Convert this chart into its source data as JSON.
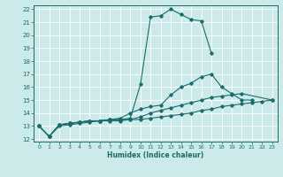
{
  "xlabel": "Humidex (Indice chaleur)",
  "bg_color": "#cceaea",
  "grid_color": "#b0d8d8",
  "line_color": "#1a6b6b",
  "xlim": [
    -0.5,
    23.5
  ],
  "ylim": [
    11.8,
    22.3
  ],
  "xticks": [
    0,
    1,
    2,
    3,
    4,
    5,
    6,
    7,
    8,
    9,
    10,
    11,
    12,
    13,
    14,
    15,
    16,
    17,
    18,
    19,
    20,
    21,
    22,
    23
  ],
  "yticks": [
    12,
    13,
    14,
    15,
    16,
    17,
    18,
    19,
    20,
    21,
    22
  ],
  "line1_x": [
    0,
    1,
    2,
    3,
    4,
    5,
    6,
    7,
    8,
    9,
    10,
    11,
    12,
    13,
    14,
    15,
    16,
    17
  ],
  "line1_y": [
    13.0,
    12.2,
    13.1,
    13.2,
    13.3,
    13.4,
    13.4,
    13.5,
    13.5,
    13.6,
    16.2,
    21.4,
    21.5,
    22.0,
    21.6,
    21.2,
    21.1,
    18.6
  ],
  "line2_x": [
    0,
    1,
    2,
    3,
    4,
    5,
    6,
    7,
    8,
    9,
    10,
    11,
    12,
    13,
    14,
    15,
    16,
    17,
    18,
    19,
    20,
    21
  ],
  "line2_y": [
    13.0,
    12.2,
    13.1,
    13.2,
    13.3,
    13.4,
    13.4,
    13.5,
    13.6,
    14.0,
    14.3,
    14.5,
    14.6,
    15.4,
    16.0,
    16.3,
    16.8,
    17.0,
    16.0,
    15.5,
    15.0,
    15.0
  ],
  "line3_x": [
    0,
    1,
    2,
    3,
    4,
    5,
    6,
    7,
    8,
    9,
    10,
    11,
    12,
    13,
    14,
    15,
    16,
    17,
    18,
    19,
    20,
    23
  ],
  "line3_y": [
    13.0,
    12.2,
    13.1,
    13.2,
    13.3,
    13.4,
    13.4,
    13.5,
    13.5,
    13.5,
    13.7,
    14.0,
    14.2,
    14.4,
    14.6,
    14.8,
    15.0,
    15.2,
    15.3,
    15.4,
    15.5,
    15.0
  ],
  "line4_x": [
    0,
    1,
    2,
    3,
    4,
    5,
    6,
    7,
    8,
    9,
    10,
    11,
    12,
    13,
    14,
    15,
    16,
    17,
    18,
    19,
    20,
    21,
    22,
    23
  ],
  "line4_y": [
    13.0,
    12.2,
    13.0,
    13.1,
    13.2,
    13.3,
    13.4,
    13.4,
    13.4,
    13.5,
    13.5,
    13.6,
    13.7,
    13.8,
    13.9,
    14.0,
    14.2,
    14.3,
    14.5,
    14.6,
    14.7,
    14.8,
    14.9,
    15.0
  ]
}
